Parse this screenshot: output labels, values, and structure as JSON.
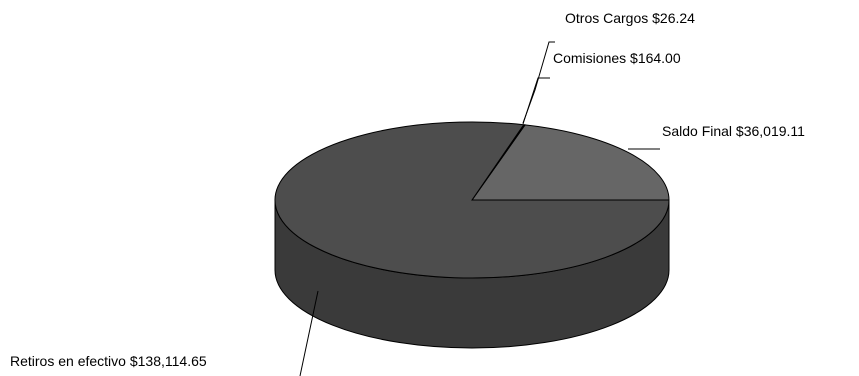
{
  "chart_data": {
    "type": "pie",
    "style": "3d",
    "legend": "none",
    "slices": [
      {
        "label": "Saldo Final $36,019.11",
        "name": "Saldo Final",
        "value": 36019.11,
        "color": "#666666"
      },
      {
        "label": "Otros Cargos $26.24",
        "name": "Otros Cargos",
        "value": 26.24,
        "color": "#4d4d4d"
      },
      {
        "label": "Comisiones $164.00",
        "name": "Comisiones",
        "value": 164.0,
        "color": "#4d4d4d"
      },
      {
        "label": "Retiros en efectivo $138,114.65",
        "name": "Retiros en efectivo",
        "value": 138114.65,
        "color": "#4d4d4d"
      }
    ],
    "side_color": "#3a3a3a"
  }
}
